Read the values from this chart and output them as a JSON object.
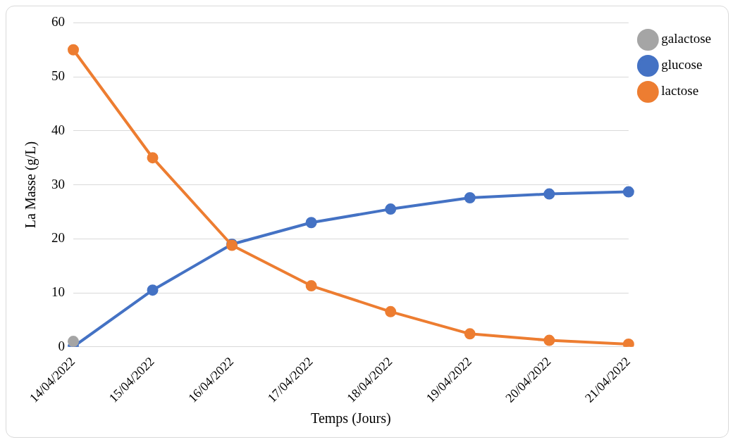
{
  "chart_data": {
    "type": "line",
    "xlabel": "Temps (Jours)",
    "ylabel": "La Masse (g/L)",
    "categories": [
      "14/04/2022",
      "15/04/2022",
      "16/04/2022",
      "17/04/2022",
      "18/04/2022",
      "19/04/2022",
      "20/04/2022",
      "21/04/2022"
    ],
    "series": [
      {
        "name": "galactose",
        "color": "#a5a5a5",
        "values": [
          1,
          null,
          null,
          null,
          null,
          null,
          null,
          null
        ]
      },
      {
        "name": "glucose",
        "color": "#4472c4",
        "values": [
          0,
          10.5,
          19,
          23,
          25.5,
          27.6,
          28.3,
          28.7
        ]
      },
      {
        "name": "lactose",
        "color": "#ed7d31",
        "values": [
          55,
          35,
          18.8,
          11.3,
          6.5,
          2.4,
          1.2,
          0.5
        ]
      }
    ],
    "ylim": [
      0,
      60
    ],
    "yticks": [
      0,
      10,
      20,
      30,
      40,
      50,
      60
    ],
    "grid": "y",
    "legend": "top right",
    "marker": "circle",
    "line_style": "solid"
  }
}
